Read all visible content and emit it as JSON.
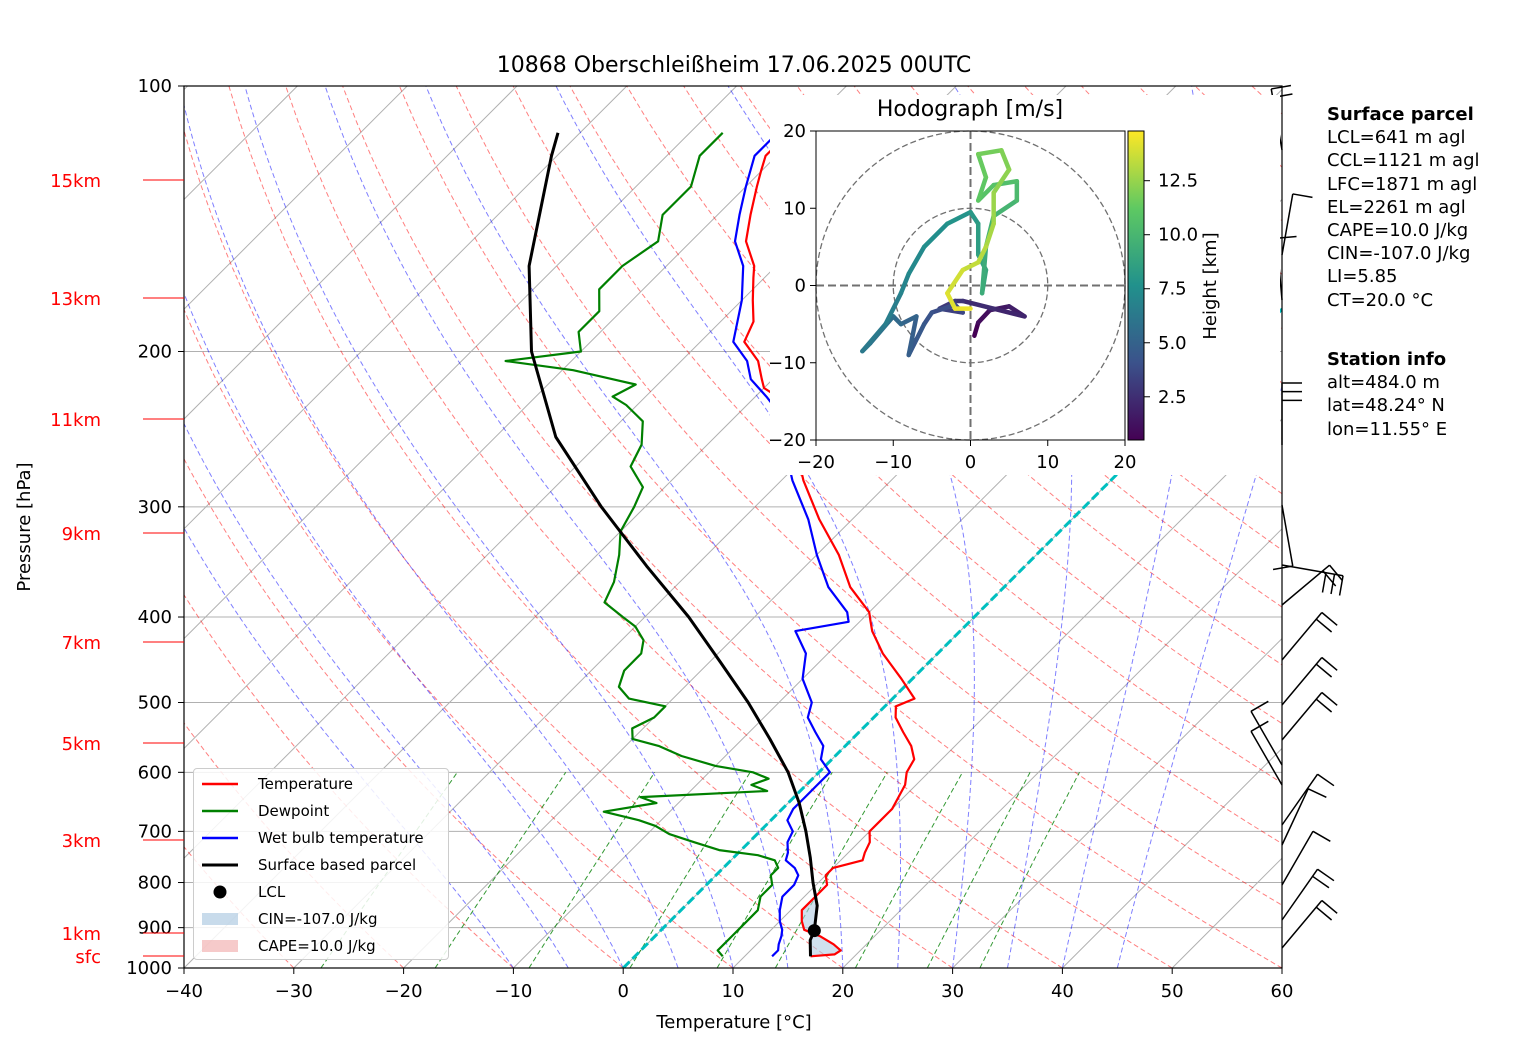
{
  "title": "10868 Oberschleißheim 17.06.2025 00UTC",
  "xlabel": "Temperature [°C]",
  "ylabel": "Pressure [hPa]",
  "height_markers": [
    "15km",
    "13km",
    "11km",
    "9km",
    "7km",
    "5km",
    "3km",
    "1km",
    "sfc"
  ],
  "legend": [
    {
      "label": "Temperature",
      "color": "#ff0000",
      "kind": "line"
    },
    {
      "label": "Dewpoint",
      "color": "#008000",
      "kind": "line"
    },
    {
      "label": "Wet bulb temperature",
      "color": "#0000ff",
      "kind": "line"
    },
    {
      "label": "Surface based parcel",
      "color": "#000000",
      "kind": "line"
    },
    {
      "label": "LCL",
      "color": "#000000",
      "kind": "dot"
    },
    {
      "label": "CIN=-107.0 J/kg",
      "color": "#b0cce3",
      "kind": "patch"
    },
    {
      "label": "CAPE=10.0 J/kg",
      "color": "#f2b4b4",
      "kind": "patch"
    }
  ],
  "surface_parcel": {
    "heading": "Surface parcel",
    "lines": [
      "LCL=641 m agl",
      "CCL=1121 m agl",
      "LFC=1871 m agl",
      "EL=2261 m agl",
      "CAPE=10.0 J/kg",
      "CIN=-107.0 J/kg",
      "LI=5.85",
      "CT=20.0 °C"
    ]
  },
  "station_info": {
    "heading": "Station info",
    "lines": [
      "alt=484.0 m",
      "lat=48.24° N",
      "lon=11.55° E"
    ]
  },
  "hodograph": {
    "title": "Hodograph [m/s]",
    "colorbar_label": "Height [km]",
    "colorbar_ticks": [
      2.5,
      5.0,
      7.5,
      10.0,
      12.5
    ],
    "height_range": [
      0.5,
      14.8
    ],
    "xlim": [
      -20,
      20
    ],
    "ylim": [
      -20,
      20
    ],
    "ticks": [
      -20,
      -10,
      0,
      10,
      20
    ],
    "rings": [
      10,
      20
    ],
    "uv": [
      [
        0.5,
        -6.5,
        0.5
      ],
      [
        1,
        -4.8,
        1
      ],
      [
        2.5,
        -3.2,
        1.5
      ],
      [
        5,
        -2.7,
        1.8
      ],
      [
        7,
        -4,
        2.1
      ],
      [
        3,
        -3,
        2.4
      ],
      [
        -1,
        -2,
        2.7
      ],
      [
        -2,
        -2,
        3
      ],
      [
        -4,
        -3,
        3.3
      ],
      [
        -1,
        -3.5,
        3.6
      ],
      [
        -2,
        -2.5,
        3.9
      ],
      [
        -5,
        -3.5,
        4.2
      ],
      [
        -6,
        -5,
        4.5
      ],
      [
        -8,
        -9,
        4.8
      ],
      [
        -7,
        -4,
        5.1
      ],
      [
        -9,
        -5,
        5.4
      ],
      [
        -10,
        -4,
        5.7
      ],
      [
        -13,
        -7.5,
        6
      ],
      [
        -14,
        -8.5,
        6.3
      ],
      [
        -11,
        -5,
        6.6
      ],
      [
        -9,
        -1,
        6.9
      ],
      [
        -8,
        1.5,
        7.2
      ],
      [
        -6,
        5,
        7.5
      ],
      [
        -3,
        8,
        7.8
      ],
      [
        0,
        9.5,
        8.1
      ],
      [
        1,
        8,
        8.4
      ],
      [
        1,
        4,
        8.7
      ],
      [
        2,
        2,
        9
      ],
      [
        1.5,
        -1,
        9.3
      ],
      [
        2,
        5,
        9.6
      ],
      [
        3,
        9,
        9.9
      ],
      [
        6,
        11,
        10.2
      ],
      [
        6,
        13.5,
        10.5
      ],
      [
        3,
        13,
        10.8
      ],
      [
        1,
        11,
        11.1
      ],
      [
        2,
        14,
        11.4
      ],
      [
        1,
        17,
        11.7
      ],
      [
        4,
        17.5,
        12
      ],
      [
        5,
        15,
        12.3
      ],
      [
        3,
        12,
        12.6
      ],
      [
        3,
        8,
        12.9
      ],
      [
        2,
        5,
        13.2
      ],
      [
        1,
        3,
        13.5
      ],
      [
        -1,
        2,
        13.8
      ],
      [
        -3,
        -1,
        14.1
      ],
      [
        -2,
        -3,
        14.4
      ],
      [
        0,
        -3,
        14.7
      ]
    ]
  },
  "chart_data": {
    "type": "line",
    "title": "10868 Oberschleißheim 17.06.2025 00UTC",
    "xlabel": "Temperature [°C]",
    "ylabel": "Pressure [hPa]",
    "xlim": [
      -40,
      60
    ],
    "ylim": [
      1000,
      100
    ],
    "y_scale": "log",
    "x_ticks": [
      -40,
      -30,
      -20,
      -10,
      0,
      10,
      20,
      30,
      40,
      50,
      60
    ],
    "y_ticks": [
      100,
      200,
      300,
      400,
      500,
      600,
      700,
      800,
      900,
      1000
    ],
    "grid": true,
    "legend_placement": "lower-left",
    "series": [
      {
        "name": "Temperature",
        "color": "#ff0000",
        "points": [
          [
            970,
            16
          ],
          [
            965,
            18
          ],
          [
            955,
            18.2
          ],
          [
            940,
            17
          ],
          [
            920,
            15
          ],
          [
            905,
            13
          ],
          [
            885,
            12
          ],
          [
            860,
            11
          ],
          [
            830,
            11
          ],
          [
            805,
            11
          ],
          [
            785,
            10
          ],
          [
            770,
            10
          ],
          [
            755,
            12
          ],
          [
            740,
            11.5
          ],
          [
            720,
            11
          ],
          [
            700,
            10
          ],
          [
            680,
            10
          ],
          [
            660,
            10
          ],
          [
            640,
            9.5
          ],
          [
            620,
            9
          ],
          [
            600,
            8
          ],
          [
            580,
            7.5
          ],
          [
            560,
            6
          ],
          [
            540,
            4
          ],
          [
            520,
            2
          ],
          [
            505,
            1
          ],
          [
            495,
            2
          ],
          [
            470,
            -1
          ],
          [
            440,
            -5
          ],
          [
            415,
            -8
          ],
          [
            405,
            -9
          ],
          [
            395,
            -10
          ],
          [
            370,
            -14
          ],
          [
            340,
            -18
          ],
          [
            310,
            -23
          ],
          [
            280,
            -28
          ],
          [
            255,
            -32
          ],
          [
            240,
            -34
          ],
          [
            225,
            -38
          ],
          [
            220,
            -40
          ],
          [
            215,
            -41
          ],
          [
            205,
            -43
          ],
          [
            195,
            -46
          ],
          [
            185,
            -47
          ],
          [
            175,
            -49
          ],
          [
            165,
            -51
          ],
          [
            160,
            -52
          ],
          [
            150,
            -55
          ],
          [
            140,
            -57
          ],
          [
            130,
            -59
          ],
          [
            125,
            -60
          ],
          [
            120,
            -61
          ],
          [
            116,
            -61
          ],
          [
            113,
            -62
          ]
        ]
      },
      {
        "name": "Dewpoint",
        "color": "#008000",
        "points": [
          [
            970,
            8
          ],
          [
            955,
            7
          ],
          [
            940,
            7
          ],
          [
            920,
            7
          ],
          [
            905,
            7
          ],
          [
            885,
            7
          ],
          [
            860,
            7
          ],
          [
            830,
            6
          ],
          [
            805,
            6
          ],
          [
            785,
            5
          ],
          [
            770,
            5
          ],
          [
            755,
            4
          ],
          [
            745,
            2
          ],
          [
            735,
            -2
          ],
          [
            720,
            -5
          ],
          [
            705,
            -8
          ],
          [
            690,
            -10
          ],
          [
            680,
            -12
          ],
          [
            665,
            -16
          ],
          [
            650,
            -12
          ],
          [
            640,
            -14
          ],
          [
            630,
            -3
          ],
          [
            620,
            -5
          ],
          [
            610,
            -4
          ],
          [
            600,
            -6
          ],
          [
            590,
            -10
          ],
          [
            575,
            -14
          ],
          [
            560,
            -17
          ],
          [
            550,
            -20
          ],
          [
            535,
            -21
          ],
          [
            520,
            -20
          ],
          [
            505,
            -20
          ],
          [
            495,
            -24
          ],
          [
            480,
            -26
          ],
          [
            460,
            -27
          ],
          [
            440,
            -27
          ],
          [
            425,
            -28
          ],
          [
            410,
            -30
          ],
          [
            400,
            -32
          ],
          [
            385,
            -35
          ],
          [
            365,
            -36
          ],
          [
            340,
            -38
          ],
          [
            320,
            -40
          ],
          [
            300,
            -41
          ],
          [
            285,
            -42
          ],
          [
            270,
            -45
          ],
          [
            255,
            -46
          ],
          [
            240,
            -48
          ],
          [
            230,
            -51
          ],
          [
            225,
            -53
          ],
          [
            218,
            -52
          ],
          [
            210,
            -59
          ],
          [
            205,
            -66
          ],
          [
            200,
            -60
          ],
          [
            190,
            -62
          ],
          [
            180,
            -62
          ],
          [
            170,
            -64
          ],
          [
            160,
            -64
          ],
          [
            150,
            -63
          ],
          [
            140,
            -65
          ],
          [
            130,
            -65
          ],
          [
            120,
            -67
          ],
          [
            113,
            -67
          ]
        ]
      },
      {
        "name": "Wet bulb temperature",
        "color": "#0000ff",
        "points": [
          [
            970,
            12.5
          ],
          [
            955,
            12.5
          ],
          [
            940,
            12
          ],
          [
            920,
            11.5
          ],
          [
            905,
            11
          ],
          [
            885,
            10
          ],
          [
            860,
            9
          ],
          [
            830,
            8
          ],
          [
            805,
            8
          ],
          [
            785,
            7.5
          ],
          [
            770,
            6.5
          ],
          [
            755,
            5
          ],
          [
            740,
            4.5
          ],
          [
            720,
            3.5
          ],
          [
            700,
            3
          ],
          [
            680,
            1.5
          ],
          [
            660,
            1
          ],
          [
            640,
            1
          ],
          [
            620,
            1
          ],
          [
            600,
            1
          ],
          [
            580,
            -1
          ],
          [
            560,
            -2
          ],
          [
            540,
            -4
          ],
          [
            520,
            -6
          ],
          [
            500,
            -7
          ],
          [
            470,
            -10
          ],
          [
            440,
            -12
          ],
          [
            415,
            -15
          ],
          [
            405,
            -11
          ],
          [
            395,
            -12
          ],
          [
            370,
            -16
          ],
          [
            340,
            -20
          ],
          [
            310,
            -24
          ],
          [
            280,
            -29
          ],
          [
            255,
            -33
          ],
          [
            240,
            -35
          ],
          [
            225,
            -39
          ],
          [
            215,
            -42
          ],
          [
            205,
            -44
          ],
          [
            195,
            -47
          ],
          [
            175,
            -50
          ],
          [
            160,
            -53
          ],
          [
            150,
            -56
          ],
          [
            140,
            -58
          ],
          [
            130,
            -60
          ],
          [
            120,
            -62
          ],
          [
            113,
            -62
          ]
        ]
      },
      {
        "name": "Surface based parcel",
        "color": "#000000",
        "points": [
          [
            970,
            16
          ],
          [
            930,
            14.5
          ],
          [
            907,
            14
          ],
          [
            850,
            12
          ],
          [
            800,
            9.5
          ],
          [
            750,
            7
          ],
          [
            700,
            4.2
          ],
          [
            650,
            1
          ],
          [
            600,
            -2.8
          ],
          [
            550,
            -7.5
          ],
          [
            500,
            -12.8
          ],
          [
            450,
            -19
          ],
          [
            400,
            -26
          ],
          [
            350,
            -34.5
          ],
          [
            300,
            -44
          ],
          [
            250,
            -54.5
          ],
          [
            200,
            -64.5
          ],
          [
            160,
            -72.5
          ],
          [
            120,
            -80.5
          ],
          [
            113,
            -82
          ]
        ]
      }
    ],
    "lcl": {
      "pressure": 907,
      "temperature": 14
    },
    "cape_j_kg": 10.0,
    "cin_j_kg": -107.0
  }
}
